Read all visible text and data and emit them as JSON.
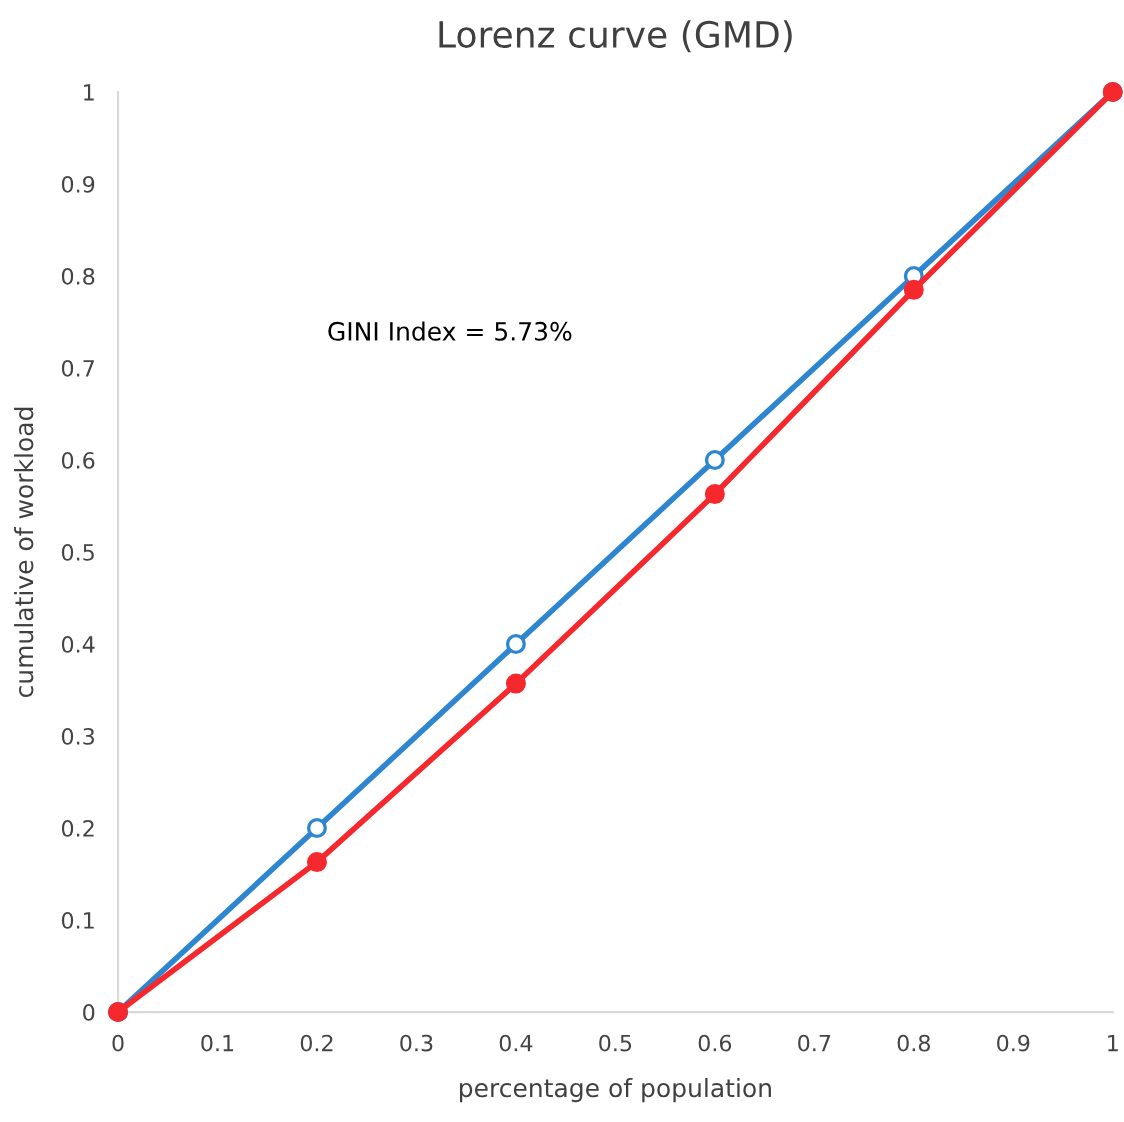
{
  "chart_data": {
    "type": "line",
    "title": "Lorenz curve (GMD)",
    "xlabel": "percentage of population",
    "ylabel": "cumulative of workload",
    "x": [
      0,
      0.2,
      0.4,
      0.6,
      0.8,
      1
    ],
    "series": [
      {
        "color": "#2e86d1",
        "values": [
          0,
          0.2,
          0.4,
          0.6,
          0.8,
          1
        ]
      },
      {
        "color": "#f5282d",
        "values": [
          0,
          0.163,
          0.357,
          0.563,
          0.785,
          1
        ]
      }
    ],
    "annotations": [
      "GINI Index = 5.73%"
    ],
    "xlim": [
      0,
      1
    ],
    "ylim": [
      0,
      1
    ],
    "xticks": [
      0,
      0.1,
      0.2,
      0.3,
      0.4,
      0.5,
      0.6,
      0.7,
      0.8,
      0.9,
      1
    ],
    "yticks": [
      0,
      0.1,
      0.2,
      0.3,
      0.4,
      0.5,
      0.6,
      0.7,
      0.8,
      0.9,
      1
    ],
    "grid": false,
    "legend": false,
    "marker": "circle",
    "line_style": "solid"
  }
}
